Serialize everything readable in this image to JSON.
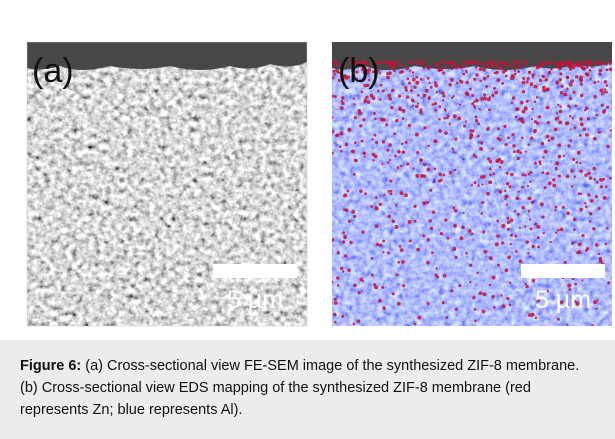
{
  "figure": {
    "panels": [
      {
        "label": "(a)",
        "scale_bar": "5 µm"
      },
      {
        "label": "(b)",
        "scale_bar": "5 µm"
      }
    ],
    "caption": {
      "label": "Figure 6:",
      "text": " (a) Cross-sectional view FE-SEM image of the synthesized ZIF-8 membrane. (b) Cross-sectional view EDS mapping of the synthesized ZIF-8 membrane (red represents Zn; blue represents Al)."
    }
  }
}
